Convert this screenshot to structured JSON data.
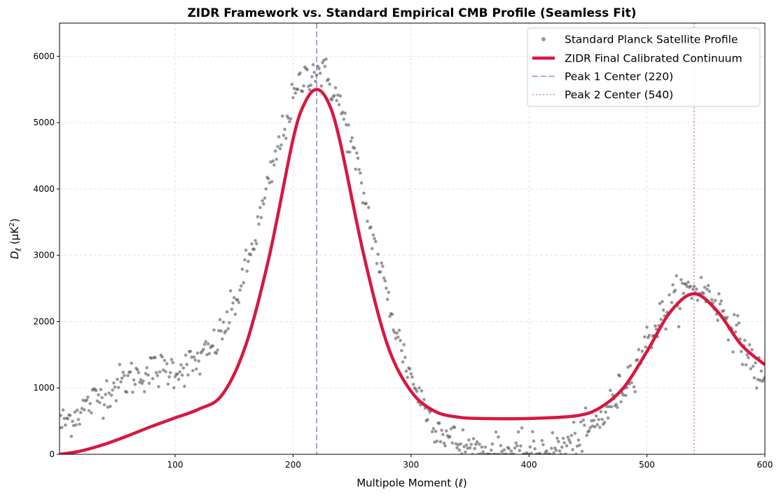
{
  "chart_data": {
    "type": "scatter",
    "title": "ZIDR Framework vs. Standard Empirical CMB Profile (Seamless Fit)",
    "xlabel": "Multipole Moment (ℓ)",
    "ylabel": "D_ℓ (μK²)",
    "xlim": [
      2,
      600
    ],
    "ylim": [
      0,
      6500
    ],
    "x_ticks": [
      100,
      200,
      300,
      400,
      500,
      600
    ],
    "y_ticks": [
      0,
      1000,
      2000,
      3000,
      4000,
      5000,
      6000
    ],
    "grid": true,
    "legend_position": "top-right",
    "series": [
      {
        "name": "Standard Planck Satellite Profile",
        "kind": "scatter",
        "color": "#555555",
        "model": {
          "components": [
            {
              "amplitude": 1200,
              "center": 80,
              "sigma": 55
            },
            {
              "amplitude": 5750,
              "center": 220,
              "sigma": 45
            },
            {
              "amplitude": 2500,
              "center": 540,
              "sigma": 45
            }
          ],
          "noise": 140
        }
      },
      {
        "name": "ZIDR Final Calibrated Continuum",
        "kind": "line",
        "color": "#d7183f",
        "x": [
          2,
          20,
          40,
          60,
          80,
          100,
          120,
          140,
          160,
          180,
          200,
          210,
          220,
          230,
          240,
          260,
          280,
          300,
          320,
          340,
          360,
          400,
          440,
          460,
          480,
          500,
          520,
          540,
          560,
          580,
          600
        ],
        "y": [
          0,
          50,
          150,
          280,
          420,
          550,
          680,
          900,
          1650,
          3000,
          4750,
          5300,
          5500,
          5300,
          4700,
          3000,
          1650,
          950,
          650,
          560,
          540,
          540,
          580,
          700,
          1000,
          1550,
          2150,
          2420,
          2150,
          1650,
          1350
        ]
      },
      {
        "name": "Peak 1 Center (220)",
        "kind": "vline",
        "x_value": 220,
        "color": "#7d73c2",
        "style": "dashed"
      },
      {
        "name": "Peak 2 Center (540)",
        "kind": "vline",
        "x_value": 540,
        "color": "#cc66bb",
        "style": "dotted"
      }
    ]
  }
}
